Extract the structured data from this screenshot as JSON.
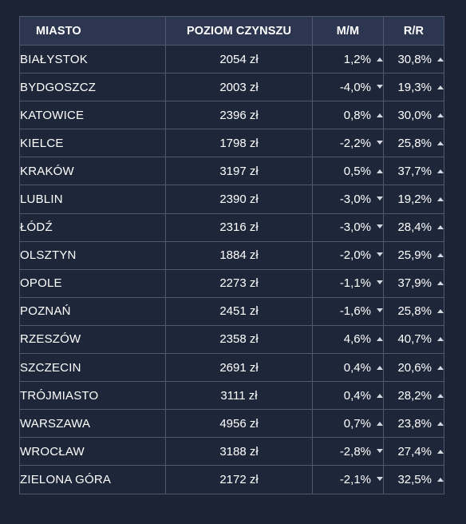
{
  "table": {
    "headers": {
      "city": "MIASTO",
      "rent": "POZIOM CZYNSZU",
      "mm": "M/M",
      "yy": "R/R"
    },
    "rows": [
      {
        "city": "BIAŁYSTOK",
        "rent": "2054 zł",
        "mm": "1,2%",
        "mm_dir": "up",
        "yy": "30,8%",
        "yy_dir": "up"
      },
      {
        "city": "BYDGOSZCZ",
        "rent": "2003 zł",
        "mm": "-4,0%",
        "mm_dir": "down",
        "yy": "19,3%",
        "yy_dir": "up"
      },
      {
        "city": "KATOWICE",
        "rent": "2396 zł",
        "mm": "0,8%",
        "mm_dir": "up",
        "yy": "30,0%",
        "yy_dir": "up"
      },
      {
        "city": "KIELCE",
        "rent": "1798 zł",
        "mm": "-2,2%",
        "mm_dir": "down",
        "yy": "25,8%",
        "yy_dir": "up"
      },
      {
        "city": "KRAKÓW",
        "rent": "3197 zł",
        "mm": "0,5%",
        "mm_dir": "up",
        "yy": "37,7%",
        "yy_dir": "up"
      },
      {
        "city": "LUBLIN",
        "rent": "2390 zł",
        "mm": "-3,0%",
        "mm_dir": "down",
        "yy": "19,2%",
        "yy_dir": "up"
      },
      {
        "city": "ŁÓDŹ",
        "rent": "2316 zł",
        "mm": "-3,0%",
        "mm_dir": "down",
        "yy": "28,4%",
        "yy_dir": "up"
      },
      {
        "city": "OLSZTYN",
        "rent": "1884 zł",
        "mm": "-2,0%",
        "mm_dir": "down",
        "yy": "25,9%",
        "yy_dir": "up"
      },
      {
        "city": "OPOLE",
        "rent": "2273 zł",
        "mm": "-1,1%",
        "mm_dir": "down",
        "yy": "37,9%",
        "yy_dir": "up"
      },
      {
        "city": "POZNAŃ",
        "rent": "2451 zł",
        "mm": "-1,6%",
        "mm_dir": "down",
        "yy": "25,8%",
        "yy_dir": "up"
      },
      {
        "city": "RZESZÓW",
        "rent": "2358 zł",
        "mm": "4,6%",
        "mm_dir": "up",
        "yy": "40,7%",
        "yy_dir": "up"
      },
      {
        "city": "SZCZECIN",
        "rent": "2691 zł",
        "mm": "0,4%",
        "mm_dir": "up",
        "yy": "20,6%",
        "yy_dir": "up"
      },
      {
        "city": "TRÓJMIASTO",
        "rent": "3111 zł",
        "mm": "0,4%",
        "mm_dir": "up",
        "yy": "28,2%",
        "yy_dir": "up"
      },
      {
        "city": "WARSZAWA",
        "rent": "4956 zł",
        "mm": "0,7%",
        "mm_dir": "up",
        "yy": "23,8%",
        "yy_dir": "up"
      },
      {
        "city": "WROCŁAW",
        "rent": "3188 zł",
        "mm": "-2,8%",
        "mm_dir": "down",
        "yy": "27,4%",
        "yy_dir": "up"
      },
      {
        "city": "ZIELONA GÓRA",
        "rent": "2172 zł",
        "mm": "-2,1%",
        "mm_dir": "down",
        "yy": "32,5%",
        "yy_dir": "up"
      }
    ]
  },
  "icons": {
    "up": "triangle-up-icon",
    "down": "triangle-down-icon"
  },
  "colors": {
    "background": "#1b2335",
    "header_background": "#2c3650",
    "border": "#4f586c",
    "text": "#ffffff",
    "arrow": "#d3d7df"
  }
}
